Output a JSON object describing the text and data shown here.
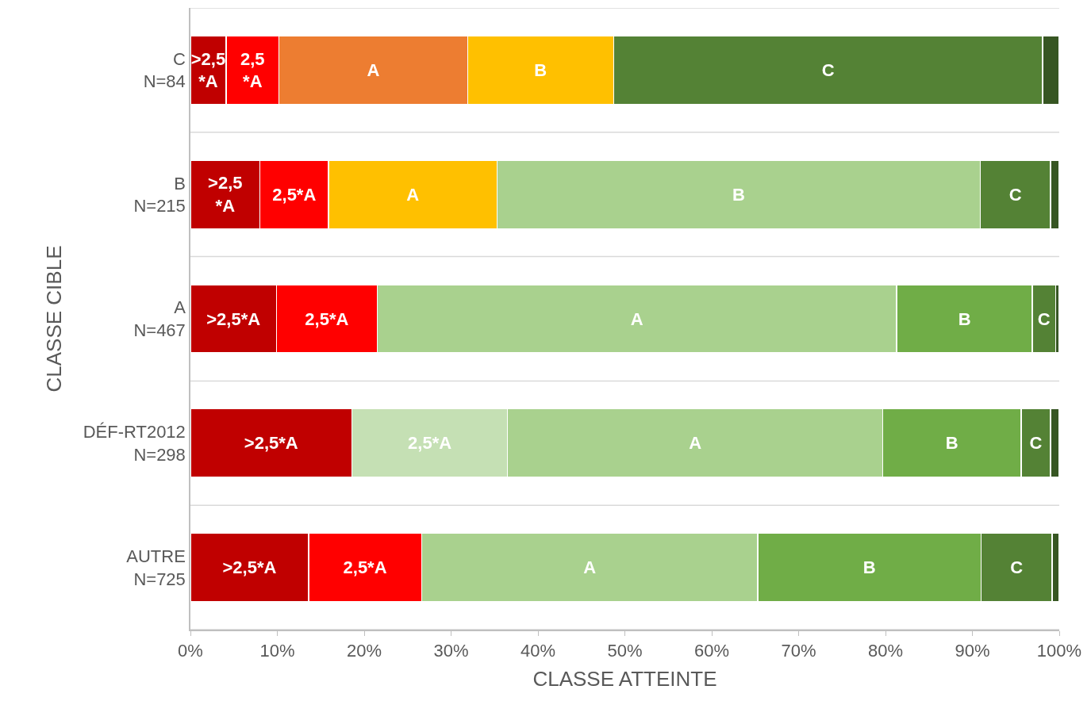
{
  "chart_data": {
    "type": "bar",
    "orientation": "horizontal",
    "stacked": true,
    "xlabel": "CLASSE ATTEINTE",
    "ylabel": "CLASSE CIBLE",
    "categories": [
      "C\nN=84",
      "B\nN=215",
      "A\nN=467",
      "DÉF-RT2012\nN=298",
      "AUTRE\nN=725"
    ],
    "xlim": [
      0,
      100
    ],
    "xticks": [
      {
        "value": 0,
        "label": "0%"
      },
      {
        "value": 10,
        "label": "10%"
      },
      {
        "value": 20,
        "label": "20%"
      },
      {
        "value": 30,
        "label": "30%"
      },
      {
        "value": 40,
        "label": "40%"
      },
      {
        "value": 50,
        "label": "50%"
      },
      {
        "value": 60,
        "label": "60%"
      },
      {
        "value": 70,
        "label": "70%"
      },
      {
        "value": 80,
        "label": "80%"
      },
      {
        "value": 90,
        "label": "90%"
      },
      {
        "value": 100,
        "label": "100%"
      }
    ],
    "grid": "y",
    "series": [
      {
        "name": ">2,5*A",
        "values": [
          4.1,
          8.0,
          9.9,
          18.6,
          13.6
        ],
        "colors": [
          "#c00000",
          "#c00000",
          "#c00000",
          "#c00000",
          "#c00000"
        ]
      },
      {
        "name": "2,5*A",
        "values": [
          6.1,
          7.9,
          11.6,
          17.9,
          13.0
        ],
        "colors": [
          "#ff0000",
          "#ff0000",
          "#ff0000",
          "#c5e0b4",
          "#ff0000"
        ]
      },
      {
        "name": "A",
        "values": [
          21.7,
          19.4,
          59.8,
          43.2,
          38.7
        ],
        "colors": [
          "#ed7d31",
          "#ffc000",
          "#a9d18e",
          "#a9d18e",
          "#a9d18e"
        ]
      },
      {
        "name": "B",
        "values": [
          16.8,
          55.6,
          15.6,
          15.9,
          25.7
        ],
        "colors": [
          "#ffc000",
          "#a9d18e",
          "#70ad47",
          "#70ad47",
          "#70ad47"
        ]
      },
      {
        "name": "C",
        "values": [
          49.4,
          8.1,
          2.7,
          3.4,
          8.2
        ],
        "colors": [
          "#548235",
          "#548235",
          "#548235",
          "#548235",
          "#548235"
        ]
      },
      {
        "values": [
          1.9,
          1.0,
          0.4,
          1.0,
          0.8
        ],
        "colors": [
          "#375623",
          "#375623",
          "#375623",
          "#375623",
          "#375623"
        ]
      }
    ]
  }
}
